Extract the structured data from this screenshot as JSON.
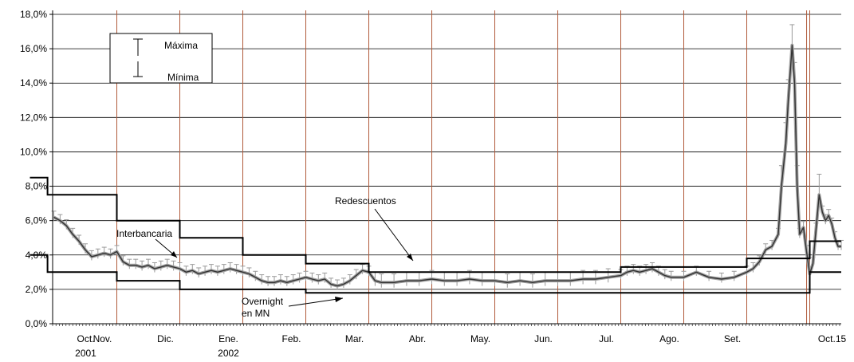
{
  "chart_data": {
    "type": "line",
    "title": "",
    "xlabel": "",
    "ylabel": "",
    "ylim": [
      0,
      18
    ],
    "y_ticks": [
      "0,0%",
      "2,0%",
      "4,0%",
      "6,0%",
      "8,0%",
      "10,0%",
      "12,0%",
      "14,0%",
      "16,0%",
      "18,0%"
    ],
    "x_ticks": [
      {
        "label": "Oct.",
        "sub": "2001"
      },
      {
        "label": "Nov.",
        "sub": ""
      },
      {
        "label": "Dic.",
        "sub": ""
      },
      {
        "label": "Ene.",
        "sub": "2002"
      },
      {
        "label": "Feb.",
        "sub": ""
      },
      {
        "label": "Mar.",
        "sub": ""
      },
      {
        "label": "Abr.",
        "sub": ""
      },
      {
        "label": "May.",
        "sub": ""
      },
      {
        "label": "Jun.",
        "sub": ""
      },
      {
        "label": "Jul.",
        "sub": ""
      },
      {
        "label": "Ago.",
        "sub": ""
      },
      {
        "label": "Set.",
        "sub": ""
      },
      {
        "label": "Oct.15",
        "sub": ""
      }
    ],
    "month_boundaries": [
      1.0,
      2.0,
      3.0,
      4.0,
      5.0,
      6.0,
      7.0,
      8.0,
      9.0,
      10.0,
      11.0,
      11.95,
      12.0
    ],
    "legend": {
      "max_label": "Máxima",
      "min_label": "Mínima",
      "placement": "top-left"
    },
    "grid": true,
    "annotations": {
      "interbancaria": "Interbancaria",
      "redescuentos": "Redescuentos",
      "overnight_1": "Overnight",
      "overnight_2": "en MN"
    },
    "series": [
      {
        "name": "Interbancaria",
        "kind": "line",
        "points": [
          [
            0.0,
            6.2
          ],
          [
            0.1,
            6.0
          ],
          [
            0.2,
            5.7
          ],
          [
            0.3,
            5.2
          ],
          [
            0.4,
            4.8
          ],
          [
            0.5,
            4.3
          ],
          [
            0.6,
            3.9
          ],
          [
            0.7,
            4.0
          ],
          [
            0.8,
            4.1
          ],
          [
            0.9,
            4.0
          ],
          [
            1.0,
            4.2
          ],
          [
            1.1,
            3.6
          ],
          [
            1.2,
            3.4
          ],
          [
            1.3,
            3.4
          ],
          [
            1.4,
            3.3
          ],
          [
            1.5,
            3.4
          ],
          [
            1.6,
            3.2
          ],
          [
            1.7,
            3.3
          ],
          [
            1.8,
            3.4
          ],
          [
            1.9,
            3.3
          ],
          [
            2.0,
            3.2
          ],
          [
            2.1,
            3.0
          ],
          [
            2.2,
            3.1
          ],
          [
            2.3,
            2.9
          ],
          [
            2.4,
            3.0
          ],
          [
            2.5,
            3.1
          ],
          [
            2.6,
            3.0
          ],
          [
            2.7,
            3.1
          ],
          [
            2.8,
            3.2
          ],
          [
            2.9,
            3.1
          ],
          [
            3.0,
            3.0
          ],
          [
            3.1,
            2.9
          ],
          [
            3.2,
            2.7
          ],
          [
            3.3,
            2.5
          ],
          [
            3.4,
            2.4
          ],
          [
            3.5,
            2.4
          ],
          [
            3.6,
            2.5
          ],
          [
            3.7,
            2.4
          ],
          [
            3.8,
            2.5
          ],
          [
            3.9,
            2.6
          ],
          [
            4.0,
            2.7
          ],
          [
            4.1,
            2.6
          ],
          [
            4.2,
            2.5
          ],
          [
            4.3,
            2.6
          ],
          [
            4.4,
            2.3
          ],
          [
            4.5,
            2.2
          ],
          [
            4.6,
            2.3
          ],
          [
            4.7,
            2.5
          ],
          [
            4.8,
            2.8
          ],
          [
            4.9,
            3.1
          ],
          [
            5.0,
            3.0
          ],
          [
            5.1,
            2.5
          ],
          [
            5.2,
            2.4
          ],
          [
            5.4,
            2.4
          ],
          [
            5.6,
            2.5
          ],
          [
            5.8,
            2.5
          ],
          [
            6.0,
            2.6
          ],
          [
            6.2,
            2.5
          ],
          [
            6.4,
            2.5
          ],
          [
            6.6,
            2.6
          ],
          [
            6.8,
            2.5
          ],
          [
            7.0,
            2.5
          ],
          [
            7.2,
            2.4
          ],
          [
            7.4,
            2.5
          ],
          [
            7.6,
            2.4
          ],
          [
            7.8,
            2.5
          ],
          [
            8.0,
            2.5
          ],
          [
            8.2,
            2.5
          ],
          [
            8.4,
            2.6
          ],
          [
            8.6,
            2.6
          ],
          [
            8.8,
            2.7
          ],
          [
            9.0,
            2.8
          ],
          [
            9.1,
            3.0
          ],
          [
            9.2,
            3.1
          ],
          [
            9.3,
            3.0
          ],
          [
            9.4,
            3.1
          ],
          [
            9.5,
            3.2
          ],
          [
            9.6,
            3.0
          ],
          [
            9.7,
            2.8
          ],
          [
            9.8,
            2.7
          ],
          [
            10.0,
            2.7
          ],
          [
            10.2,
            3.0
          ],
          [
            10.4,
            2.7
          ],
          [
            10.6,
            2.6
          ],
          [
            10.8,
            2.7
          ],
          [
            11.0,
            3.0
          ],
          [
            11.1,
            3.2
          ],
          [
            11.2,
            3.6
          ],
          [
            11.3,
            4.3
          ],
          [
            11.4,
            4.5
          ],
          [
            11.5,
            5.2
          ],
          [
            11.55,
            8.0
          ],
          [
            11.62,
            10.5
          ],
          [
            11.66,
            13.0
          ],
          [
            11.72,
            16.2
          ],
          [
            11.76,
            14.0
          ],
          [
            11.8,
            8.0
          ],
          [
            11.84,
            5.2
          ],
          [
            11.9,
            5.6
          ],
          [
            11.95,
            4.2
          ],
          [
            12.0,
            2.9
          ],
          [
            12.05,
            3.5
          ],
          [
            12.1,
            5.5
          ],
          [
            12.15,
            7.5
          ],
          [
            12.2,
            6.5
          ],
          [
            12.25,
            6.0
          ],
          [
            12.3,
            6.3
          ],
          [
            12.35,
            5.8
          ],
          [
            12.4,
            5.0
          ],
          [
            12.45,
            4.5
          ],
          [
            12.5,
            4.5
          ]
        ]
      },
      {
        "name": "Redescuentos",
        "kind": "step",
        "points": [
          [
            -0.38,
            8.5
          ],
          [
            -0.1,
            8.5
          ],
          [
            -0.1,
            7.5
          ],
          [
            1.0,
            7.5
          ],
          [
            1.0,
            6.0
          ],
          [
            2.0,
            6.0
          ],
          [
            2.0,
            5.0
          ],
          [
            3.0,
            5.0
          ],
          [
            3.0,
            4.0
          ],
          [
            4.0,
            4.0
          ],
          [
            4.0,
            3.5
          ],
          [
            5.0,
            3.5
          ],
          [
            5.0,
            3.0
          ],
          [
            9.0,
            3.0
          ],
          [
            9.0,
            3.3
          ],
          [
            11.0,
            3.3
          ],
          [
            11.0,
            3.8
          ],
          [
            12.0,
            3.8
          ],
          [
            12.0,
            4.8
          ],
          [
            12.5,
            4.8
          ]
        ]
      },
      {
        "name": "Overnight en MN",
        "kind": "step",
        "points": [
          [
            -0.38,
            4.0
          ],
          [
            -0.1,
            4.0
          ],
          [
            -0.1,
            3.0
          ],
          [
            1.0,
            3.0
          ],
          [
            1.0,
            2.5
          ],
          [
            2.0,
            2.5
          ],
          [
            2.0,
            2.0
          ],
          [
            3.0,
            2.0
          ],
          [
            3.0,
            2.0
          ],
          [
            4.0,
            2.0
          ],
          [
            4.0,
            1.8
          ],
          [
            12.0,
            1.8
          ],
          [
            12.0,
            3.0
          ],
          [
            12.5,
            3.0
          ]
        ]
      }
    ]
  }
}
